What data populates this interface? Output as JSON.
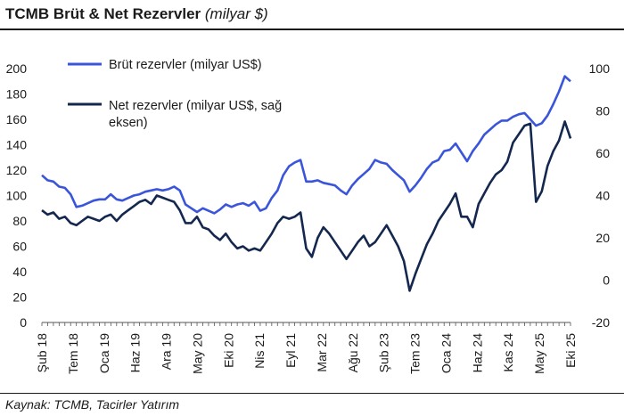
{
  "header": {
    "title": "TCMB Brüt & Net Rezervler",
    "title_unit": "(milyar $)"
  },
  "footer": {
    "source": "Kaynak: TCMB, Tacirler Yatırım"
  },
  "chart_data": {
    "type": "line",
    "title": "TCMB Brüt & Net Rezervler (milyar $)",
    "x_unit": "month",
    "x_start": "2018-02",
    "x_end": "2025-10",
    "x_tick_labels": [
      "Şub 18",
      "Tem 18",
      "Oca 19",
      "Haz 19",
      "Ara 19",
      "May 20",
      "Eki 20",
      "Nis 21",
      "Eyl 21",
      "Mar 22",
      "Ağu 22",
      "Şub 23",
      "Tem 23",
      "Oca 24",
      "Haz 24",
      "Kas 24",
      "May 25",
      "Eki 25"
    ],
    "y_left": {
      "min": 0,
      "max": 200,
      "step": 20,
      "ticks": [
        0,
        20,
        40,
        60,
        80,
        100,
        120,
        140,
        160,
        180,
        200
      ]
    },
    "y_right": {
      "min": -20,
      "max": 100,
      "step": 20,
      "ticks": [
        -20,
        0,
        20,
        40,
        60,
        80,
        100
      ]
    },
    "grid": false,
    "legend_position": "top-left",
    "series": [
      {
        "name": "Brüt rezervler (milyar US$)",
        "axis": "left",
        "color": "#3a55d9",
        "points": [
          [
            "2018-02",
            116
          ],
          [
            "2018-03",
            112
          ],
          [
            "2018-04",
            111
          ],
          [
            "2018-05",
            107
          ],
          [
            "2018-06",
            106
          ],
          [
            "2018-07",
            101
          ],
          [
            "2018-08",
            91
          ],
          [
            "2018-09",
            92
          ],
          [
            "2018-10",
            94
          ],
          [
            "2018-11",
            96
          ],
          [
            "2018-12",
            97
          ],
          [
            "2019-01",
            97
          ],
          [
            "2019-02",
            101
          ],
          [
            "2019-03",
            97
          ],
          [
            "2019-04",
            96
          ],
          [
            "2019-05",
            98
          ],
          [
            "2019-06",
            100
          ],
          [
            "2019-07",
            101
          ],
          [
            "2019-08",
            103
          ],
          [
            "2019-09",
            104
          ],
          [
            "2019-10",
            105
          ],
          [
            "2019-11",
            104
          ],
          [
            "2019-12",
            105
          ],
          [
            "2020-01",
            107
          ],
          [
            "2020-02",
            104
          ],
          [
            "2020-03",
            93
          ],
          [
            "2020-04",
            90
          ],
          [
            "2020-05",
            87
          ],
          [
            "2020-06",
            90
          ],
          [
            "2020-07",
            88
          ],
          [
            "2020-08",
            86
          ],
          [
            "2020-09",
            89
          ],
          [
            "2020-10",
            93
          ],
          [
            "2020-11",
            91
          ],
          [
            "2020-12",
            93
          ],
          [
            "2021-01",
            94
          ],
          [
            "2021-02",
            92
          ],
          [
            "2021-03",
            95
          ],
          [
            "2021-04",
            88
          ],
          [
            "2021-05",
            90
          ],
          [
            "2021-06",
            98
          ],
          [
            "2021-07",
            104
          ],
          [
            "2021-08",
            116
          ],
          [
            "2021-09",
            123
          ],
          [
            "2021-10",
            126
          ],
          [
            "2021-11",
            128
          ],
          [
            "2021-12",
            111
          ],
          [
            "2022-01",
            111
          ],
          [
            "2022-02",
            112
          ],
          [
            "2022-03",
            110
          ],
          [
            "2022-04",
            109
          ],
          [
            "2022-05",
            108
          ],
          [
            "2022-06",
            104
          ],
          [
            "2022-07",
            101
          ],
          [
            "2022-08",
            108
          ],
          [
            "2022-09",
            113
          ],
          [
            "2022-10",
            117
          ],
          [
            "2022-11",
            121
          ],
          [
            "2022-12",
            128
          ],
          [
            "2023-01",
            126
          ],
          [
            "2023-02",
            125
          ],
          [
            "2023-03",
            120
          ],
          [
            "2023-04",
            116
          ],
          [
            "2023-05",
            112
          ],
          [
            "2023-06",
            103
          ],
          [
            "2023-07",
            108
          ],
          [
            "2023-08",
            114
          ],
          [
            "2023-09",
            121
          ],
          [
            "2023-10",
            126
          ],
          [
            "2023-11",
            128
          ],
          [
            "2023-12",
            135
          ],
          [
            "2024-01",
            136
          ],
          [
            "2024-02",
            141
          ],
          [
            "2024-03",
            134
          ],
          [
            "2024-04",
            127
          ],
          [
            "2024-05",
            135
          ],
          [
            "2024-06",
            141
          ],
          [
            "2024-07",
            148
          ],
          [
            "2024-08",
            152
          ],
          [
            "2024-09",
            156
          ],
          [
            "2024-10",
            159
          ],
          [
            "2024-11",
            159
          ],
          [
            "2024-12",
            162
          ],
          [
            "2025-01",
            164
          ],
          [
            "2025-02",
            165
          ],
          [
            "2025-03",
            160
          ],
          [
            "2025-04",
            155
          ],
          [
            "2025-05",
            157
          ],
          [
            "2025-06",
            163
          ],
          [
            "2025-07",
            172
          ],
          [
            "2025-08",
            182
          ],
          [
            "2025-09",
            194
          ],
          [
            "2025-10",
            190
          ]
        ]
      },
      {
        "name": "Net rezervler (milyar US$, sağ eksen)",
        "axis": "right",
        "color": "#14274e",
        "points": [
          [
            "2018-02",
            33
          ],
          [
            "2018-03",
            31
          ],
          [
            "2018-04",
            32
          ],
          [
            "2018-05",
            29
          ],
          [
            "2018-06",
            30
          ],
          [
            "2018-07",
            27
          ],
          [
            "2018-08",
            26
          ],
          [
            "2018-09",
            28
          ],
          [
            "2018-10",
            30
          ],
          [
            "2018-11",
            29
          ],
          [
            "2018-12",
            28
          ],
          [
            "2019-01",
            30
          ],
          [
            "2019-02",
            31
          ],
          [
            "2019-03",
            28
          ],
          [
            "2019-04",
            31
          ],
          [
            "2019-05",
            33
          ],
          [
            "2019-06",
            35
          ],
          [
            "2019-07",
            37
          ],
          [
            "2019-08",
            38
          ],
          [
            "2019-09",
            36
          ],
          [
            "2019-10",
            40
          ],
          [
            "2019-11",
            39
          ],
          [
            "2019-12",
            38
          ],
          [
            "2020-01",
            37
          ],
          [
            "2020-02",
            33
          ],
          [
            "2020-03",
            27
          ],
          [
            "2020-04",
            27
          ],
          [
            "2020-05",
            30
          ],
          [
            "2020-06",
            25
          ],
          [
            "2020-07",
            24
          ],
          [
            "2020-08",
            21
          ],
          [
            "2020-09",
            19
          ],
          [
            "2020-10",
            22
          ],
          [
            "2020-11",
            18
          ],
          [
            "2020-12",
            15
          ],
          [
            "2021-01",
            16
          ],
          [
            "2021-02",
            14
          ],
          [
            "2021-03",
            15
          ],
          [
            "2021-04",
            14
          ],
          [
            "2021-05",
            18
          ],
          [
            "2021-06",
            22
          ],
          [
            "2021-07",
            27
          ],
          [
            "2021-08",
            30
          ],
          [
            "2021-09",
            29
          ],
          [
            "2021-10",
            30
          ],
          [
            "2021-11",
            32
          ],
          [
            "2021-12",
            15
          ],
          [
            "2022-01",
            11
          ],
          [
            "2022-02",
            20
          ],
          [
            "2022-03",
            25
          ],
          [
            "2022-04",
            22
          ],
          [
            "2022-05",
            18
          ],
          [
            "2022-06",
            14
          ],
          [
            "2022-07",
            10
          ],
          [
            "2022-08",
            14
          ],
          [
            "2022-09",
            18
          ],
          [
            "2022-10",
            21
          ],
          [
            "2022-11",
            16
          ],
          [
            "2022-12",
            18
          ],
          [
            "2023-01",
            22
          ],
          [
            "2023-02",
            26
          ],
          [
            "2023-03",
            21
          ],
          [
            "2023-04",
            16
          ],
          [
            "2023-05",
            9
          ],
          [
            "2023-06",
            -5
          ],
          [
            "2023-07",
            3
          ],
          [
            "2023-08",
            10
          ],
          [
            "2023-09",
            17
          ],
          [
            "2023-10",
            22
          ],
          [
            "2023-11",
            28
          ],
          [
            "2023-12",
            32
          ],
          [
            "2024-01",
            36
          ],
          [
            "2024-02",
            41
          ],
          [
            "2024-03",
            30
          ],
          [
            "2024-04",
            30
          ],
          [
            "2024-05",
            25
          ],
          [
            "2024-06",
            36
          ],
          [
            "2024-07",
            41
          ],
          [
            "2024-08",
            46
          ],
          [
            "2024-09",
            50
          ],
          [
            "2024-10",
            52
          ],
          [
            "2024-11",
            56
          ],
          [
            "2024-12",
            65
          ],
          [
            "2025-01",
            69
          ],
          [
            "2025-02",
            73
          ],
          [
            "2025-03",
            74
          ],
          [
            "2025-04",
            37
          ],
          [
            "2025-05",
            42
          ],
          [
            "2025-06",
            54
          ],
          [
            "2025-07",
            61
          ],
          [
            "2025-08",
            66
          ],
          [
            "2025-09",
            75
          ],
          [
            "2025-10",
            67
          ]
        ]
      }
    ]
  }
}
